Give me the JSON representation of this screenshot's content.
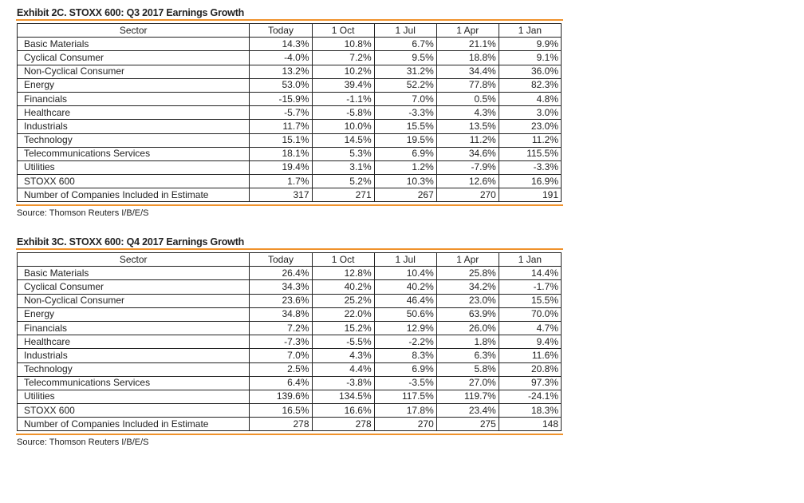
{
  "columns": [
    "Sector",
    "Today",
    "1 Oct",
    "1 Jul",
    "1 Apr",
    "1 Jan"
  ],
  "exhibits": [
    {
      "title": "Exhibit 2C.  STOXX 600: Q3 2017 Earnings Growth",
      "source": "Source: Thomson Reuters I/B/E/S",
      "rows": [
        [
          "Basic Materials",
          "14.3%",
          "10.8%",
          "6.7%",
          "21.1%",
          "9.9%"
        ],
        [
          "Cyclical Consumer",
          "-4.0%",
          "7.2%",
          "9.5%",
          "18.8%",
          "9.1%"
        ],
        [
          "Non-Cyclical Consumer",
          "13.2%",
          "10.2%",
          "31.2%",
          "34.4%",
          "36.0%"
        ],
        [
          "Energy",
          "53.0%",
          "39.4%",
          "52.2%",
          "77.8%",
          "82.3%"
        ],
        [
          "Financials",
          "-15.9%",
          "-1.1%",
          "7.0%",
          "0.5%",
          "4.8%"
        ],
        [
          "Healthcare",
          "-5.7%",
          "-5.8%",
          "-3.3%",
          "4.3%",
          "3.0%"
        ],
        [
          "Industrials",
          "11.7%",
          "10.0%",
          "15.5%",
          "13.5%",
          "23.0%"
        ],
        [
          "Technology",
          "15.1%",
          "14.5%",
          "19.5%",
          "11.2%",
          "11.2%"
        ],
        [
          "Telecommunications Services",
          "18.1%",
          "5.3%",
          "6.9%",
          "34.6%",
          "115.5%"
        ],
        [
          "Utilities",
          "19.4%",
          "3.1%",
          "1.2%",
          "-7.9%",
          "-3.3%"
        ],
        [
          "STOXX 600",
          "1.7%",
          "5.2%",
          "10.3%",
          "12.6%",
          "16.9%"
        ],
        [
          "Number of Companies Included in Estimate",
          "317",
          "271",
          "267",
          "270",
          "191"
        ]
      ]
    },
    {
      "title": "Exhibit 3C.  STOXX 600: Q4 2017 Earnings Growth",
      "source": "Source: Thomson Reuters I/B/E/S",
      "rows": [
        [
          "Basic Materials",
          "26.4%",
          "12.8%",
          "10.4%",
          "25.8%",
          "14.4%"
        ],
        [
          "Cyclical Consumer",
          "34.3%",
          "40.2%",
          "40.2%",
          "34.2%",
          "-1.7%"
        ],
        [
          "Non-Cyclical Consumer",
          "23.6%",
          "25.2%",
          "46.4%",
          "23.0%",
          "15.5%"
        ],
        [
          "Energy",
          "34.8%",
          "22.0%",
          "50.6%",
          "63.9%",
          "70.0%"
        ],
        [
          "Financials",
          "7.2%",
          "15.2%",
          "12.9%",
          "26.0%",
          "4.7%"
        ],
        [
          "Healthcare",
          "-7.3%",
          "-5.5%",
          "-2.2%",
          "1.8%",
          "9.4%"
        ],
        [
          "Industrials",
          "7.0%",
          "4.3%",
          "8.3%",
          "6.3%",
          "11.6%"
        ],
        [
          "Technology",
          "2.5%",
          "4.4%",
          "6.9%",
          "5.8%",
          "20.8%"
        ],
        [
          "Telecommunications Services",
          "6.4%",
          "-3.8%",
          "-3.5%",
          "27.0%",
          "97.3%"
        ],
        [
          "Utilities",
          "139.6%",
          "134.5%",
          "117.5%",
          "119.7%",
          "-24.1%"
        ],
        [
          "STOXX 600",
          "16.5%",
          "16.6%",
          "17.8%",
          "23.4%",
          "18.3%"
        ],
        [
          "Number of Companies Included in Estimate",
          "278",
          "278",
          "270",
          "275",
          "148"
        ]
      ]
    }
  ]
}
